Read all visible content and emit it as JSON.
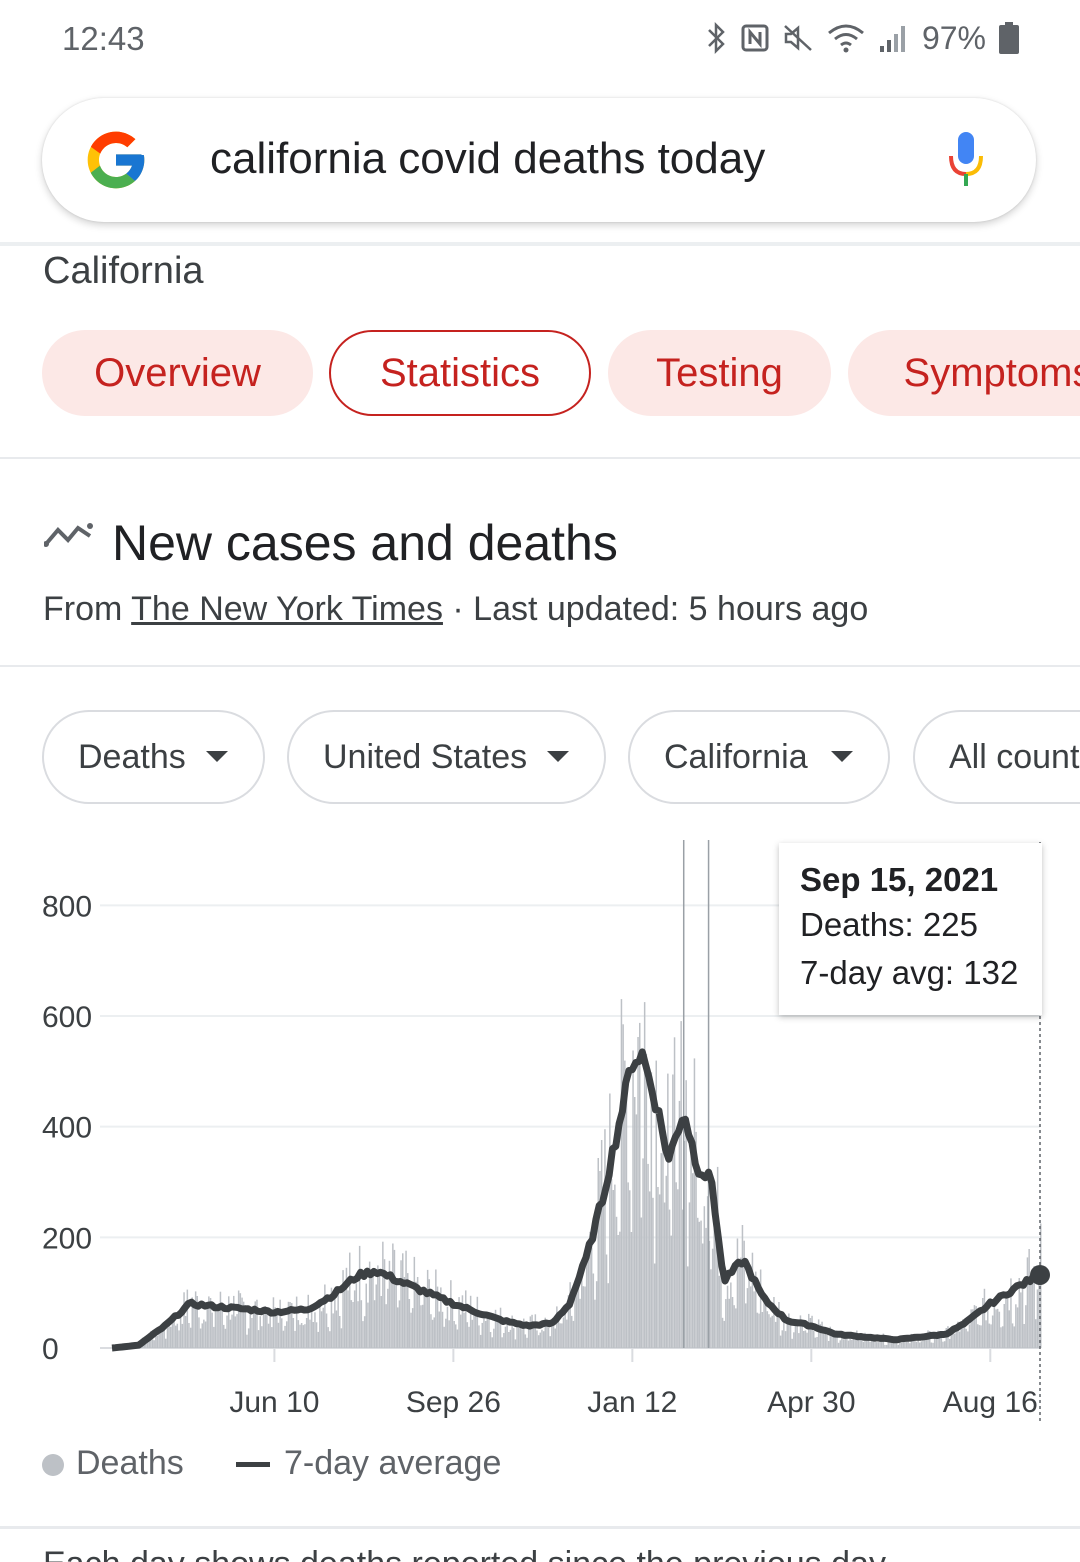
{
  "status_bar": {
    "time": "12:43",
    "battery": "97%"
  },
  "search": {
    "query": "california covid deaths today"
  },
  "location": "California",
  "chips": [
    {
      "label": "Overview",
      "selected": false
    },
    {
      "label": "Statistics",
      "selected": true
    },
    {
      "label": "Testing",
      "selected": false
    },
    {
      "label": "Symptoms",
      "selected": false
    }
  ],
  "section": {
    "title": "New cases and deaths",
    "source_prefix": "From ",
    "source_name": "The New York Times",
    "source_suffix": " · Last updated: 5 hours ago"
  },
  "filters": [
    {
      "label": "Deaths"
    },
    {
      "label": "United States"
    },
    {
      "label": "California"
    },
    {
      "label": "All counties"
    }
  ],
  "tooltip": {
    "date": "Sep 15, 2021",
    "deaths": "Deaths: 225",
    "avg": "7-day avg: 132"
  },
  "legend": {
    "deaths": "Deaths",
    "avg": "7-day average"
  },
  "footer_text": "Each day shows deaths reported since the previous day",
  "colors": {
    "bars": "#bdc1c6",
    "line": "#3c4043",
    "accent": "#c5221f",
    "chip_bg": "#fce8e6"
  },
  "chart_data": {
    "type": "bar",
    "title": "",
    "xlabel": "",
    "ylabel": "",
    "ylim": [
      0,
      900
    ],
    "yticks": [
      0,
      200,
      400,
      600,
      800
    ],
    "xticks": [
      "Jun 10",
      "Sep 26",
      "Jan 12",
      "Apr 30",
      "Aug 16"
    ],
    "x_range": [
      "2020-03-04",
      "2021-09-15"
    ],
    "series": [
      {
        "name": "Deaths",
        "kind": "bar",
        "note": "daily deaths, peaking near 720 around mid-January 2021"
      },
      {
        "name": "7-day average",
        "kind": "line",
        "points": [
          [
            "2020-03-04",
            0
          ],
          [
            "2020-03-20",
            5
          ],
          [
            "2020-04-05",
            40
          ],
          [
            "2020-04-20",
            80
          ],
          [
            "2020-05-05",
            75
          ],
          [
            "2020-05-25",
            70
          ],
          [
            "2020-06-10",
            65
          ],
          [
            "2020-06-30",
            70
          ],
          [
            "2020-07-15",
            95
          ],
          [
            "2020-07-30",
            130
          ],
          [
            "2020-08-10",
            140
          ],
          [
            "2020-08-25",
            120
          ],
          [
            "2020-09-10",
            100
          ],
          [
            "2020-09-26",
            80
          ],
          [
            "2020-10-10",
            65
          ],
          [
            "2020-10-25",
            50
          ],
          [
            "2020-11-10",
            40
          ],
          [
            "2020-11-25",
            45
          ],
          [
            "2020-12-05",
            80
          ],
          [
            "2020-12-15",
            160
          ],
          [
            "2020-12-25",
            270
          ],
          [
            "2021-01-05",
            420
          ],
          [
            "2021-01-12",
            520
          ],
          [
            "2021-01-18",
            530
          ],
          [
            "2021-01-25",
            460
          ],
          [
            "2021-02-03",
            340
          ],
          [
            "2021-02-12",
            430
          ],
          [
            "2021-02-20",
            330
          ],
          [
            "2021-03-01",
            300
          ],
          [
            "2021-03-08",
            120
          ],
          [
            "2021-03-20",
            160
          ],
          [
            "2021-04-01",
            90
          ],
          [
            "2021-04-15",
            50
          ],
          [
            "2021-04-30",
            40
          ],
          [
            "2021-05-15",
            25
          ],
          [
            "2021-06-01",
            20
          ],
          [
            "2021-06-20",
            15
          ],
          [
            "2021-07-05",
            20
          ],
          [
            "2021-07-20",
            25
          ],
          [
            "2021-08-01",
            45
          ],
          [
            "2021-08-16",
            80
          ],
          [
            "2021-09-01",
            110
          ],
          [
            "2021-09-15",
            132
          ]
        ]
      }
    ],
    "highlight": {
      "date": "2021-09-15",
      "deaths": 225,
      "avg": 132
    }
  }
}
